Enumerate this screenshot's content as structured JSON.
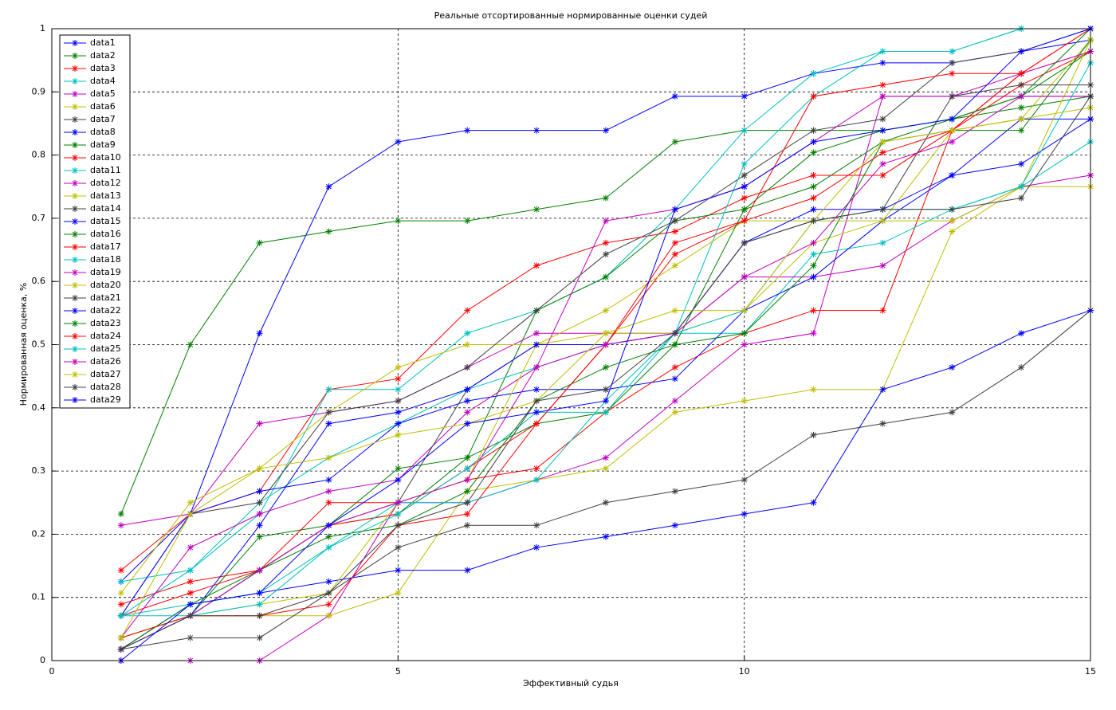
{
  "chart_data": {
    "type": "line",
    "title": "Реальные отсортированные нормированные оценки судей",
    "x_label": "Эффективный судья",
    "y_label": "Нормированная оценка, %",
    "x": [
      1,
      2,
      3,
      4,
      5,
      6,
      7,
      8,
      9,
      10,
      11,
      12,
      13,
      14,
      15
    ],
    "xlim": [
      0,
      15
    ],
    "xticks": [
      0,
      5,
      10,
      15
    ],
    "ylim": [
      0,
      1
    ],
    "yticks": [
      0,
      0.1,
      0.2,
      0.3,
      0.4,
      0.5,
      0.6,
      0.7,
      0.8,
      0.9,
      1
    ],
    "grid": true,
    "legend": "upper-left",
    "series": [
      {
        "name": "data1",
        "color": "#0000ff",
        "values": [
          0.125,
          0.232,
          0.518,
          0.75,
          0.821,
          0.839,
          0.839,
          0.839,
          0.893,
          0.893,
          0.929,
          0.946,
          0.946,
          0.964,
          0.982
        ]
      },
      {
        "name": "data2",
        "color": "#008000",
        "values": [
          0.232,
          0.5,
          0.661,
          0.679,
          0.696,
          0.696,
          0.714,
          0.732,
          0.821,
          0.839,
          0.839,
          0.839,
          0.857,
          0.875,
          0.893
        ]
      },
      {
        "name": "data3",
        "color": "#ff0000",
        "values": [
          0.143,
          0.232,
          0.268,
          0.429,
          0.446,
          0.554,
          0.625,
          0.661,
          0.679,
          0.732,
          0.768,
          0.768,
          0.839,
          0.929,
          1.0
        ]
      },
      {
        "name": "data4",
        "color": "#00bfbf",
        "values": [
          0.071,
          0.143,
          0.232,
          0.429,
          0.429,
          0.518,
          0.554,
          0.607,
          0.714,
          0.839,
          0.929,
          0.964,
          0.964,
          1.0,
          1.0
        ]
      },
      {
        "name": "data5",
        "color": "#bf00bf",
        "values": [
          0,
          0,
          0,
          0.071,
          0.25,
          0.25,
          0.286,
          0.321,
          0.411,
          0.5,
          0.518,
          0.893,
          0.893,
          0.893,
          0.893
        ]
      },
      {
        "name": "data6",
        "color": "#bfbf00",
        "values": [
          0.036,
          0.071,
          0.071,
          0.071,
          0.107,
          0.268,
          0.286,
          0.304,
          0.393,
          0.411,
          0.429,
          0.429,
          0.679,
          0.75,
          0.75
        ]
      },
      {
        "name": "data7",
        "color": "#404040",
        "values": [
          0.018,
          0.036,
          0.036,
          0.107,
          0.179,
          0.214,
          0.214,
          0.25,
          0.268,
          0.286,
          0.357,
          0.375,
          0.393,
          0.464,
          0.554
        ]
      },
      {
        "name": "data8",
        "color": "#0000ff",
        "values": [
          0.018,
          0.089,
          0.107,
          0.125,
          0.143,
          0.143,
          0.179,
          0.196,
          0.214,
          0.232,
          0.25,
          0.429,
          0.464,
          0.518,
          0.554
        ]
      },
      {
        "name": "data9",
        "color": "#008000",
        "values": [
          0.036,
          0.071,
          0.196,
          0.214,
          0.232,
          0.321,
          0.554,
          0.607,
          0.696,
          0.714,
          0.804,
          0.839,
          0.857,
          0.893,
          0.964
        ]
      },
      {
        "name": "data10",
        "color": "#ff0000",
        "values": [
          0.071,
          0.107,
          0.143,
          0.25,
          0.25,
          0.286,
          0.304,
          0.393,
          0.464,
          0.518,
          0.554,
          0.554,
          0.839,
          0.911,
          0.964
        ]
      },
      {
        "name": "data11",
        "color": "#00bfbf",
        "values": [
          0.125,
          0.143,
          0.25,
          0.321,
          0.375,
          0.429,
          0.464,
          0.5,
          0.518,
          0.518,
          0.643,
          0.661,
          0.714,
          0.75,
          0.821
        ]
      },
      {
        "name": "data12",
        "color": "#bf00bf",
        "values": [
          0.214,
          0.232,
          0.375,
          0.393,
          0.411,
          0.464,
          0.518,
          0.518,
          0.518,
          0.607,
          0.607,
          0.625,
          0.696,
          0.75,
          0.768
        ]
      },
      {
        "name": "data13",
        "color": "#bfbf00",
        "values": [
          0.107,
          0.25,
          0.304,
          0.393,
          0.464,
          0.5,
          0.5,
          0.518,
          0.518,
          0.554,
          0.661,
          0.696,
          0.839,
          0.857,
          0.982
        ]
      },
      {
        "name": "data14",
        "color": "#404040",
        "values": [
          0.071,
          0.232,
          0.25,
          0.393,
          0.411,
          0.464,
          0.554,
          0.643,
          0.696,
          0.768,
          0.839,
          0.857,
          0.946,
          0.964,
          1.0
        ]
      },
      {
        "name": "data15",
        "color": "#0000ff",
        "values": [
          0.071,
          0.232,
          0.268,
          0.286,
          0.375,
          0.411,
          0.429,
          0.429,
          0.446,
          0.554,
          0.607,
          0.696,
          0.768,
          0.857,
          0.857
        ]
      },
      {
        "name": "data16",
        "color": "#008000",
        "values": [
          0.018,
          0.089,
          0.143,
          0.214,
          0.304,
          0.321,
          0.375,
          0.393,
          0.5,
          0.518,
          0.625,
          0.821,
          0.839,
          0.839,
          0.982
        ]
      },
      {
        "name": "data17",
        "color": "#ff0000",
        "values": [
          0.089,
          0.125,
          0.143,
          0.214,
          0.232,
          0.304,
          0.375,
          0.5,
          0.643,
          0.696,
          0.732,
          0.804,
          0.839,
          0.929,
          0.964
        ]
      },
      {
        "name": "data18",
        "color": "#00bfbf",
        "values": [
          0.071,
          0.089,
          0.107,
          0.179,
          0.232,
          0.304,
          0.393,
          0.393,
          0.518,
          0.786,
          0.893,
          0.964,
          0.964,
          1.0,
          1.0
        ]
      },
      {
        "name": "data19",
        "color": "#bf00bf",
        "values": [
          0.036,
          0.179,
          0.232,
          0.268,
          0.286,
          0.393,
          0.464,
          0.696,
          0.714,
          0.75,
          0.821,
          0.893,
          0.893,
          0.929,
          0.964
        ]
      },
      {
        "name": "data20",
        "color": "#bfbf00",
        "values": [
          0.036,
          0.071,
          0.089,
          0.107,
          0.25,
          0.286,
          0.5,
          0.554,
          0.625,
          0.696,
          0.696,
          0.696,
          0.696,
          0.75,
          0.982
        ]
      },
      {
        "name": "data21",
        "color": "#404040",
        "values": [
          0.018,
          0.071,
          0.143,
          0.214,
          0.25,
          0.429,
          0.5,
          0.5,
          0.518,
          0.661,
          0.696,
          0.714,
          0.893,
          0.911,
          0.911
        ]
      },
      {
        "name": "data22",
        "color": "#0000ff",
        "values": [
          0.018,
          0.071,
          0.214,
          0.375,
          0.393,
          0.429,
          0.5,
          0.5,
          0.518,
          0.661,
          0.714,
          0.714,
          0.768,
          0.786,
          0.857
        ]
      },
      {
        "name": "data23",
        "color": "#008000",
        "values": [
          0.036,
          0.071,
          0.143,
          0.196,
          0.214,
          0.268,
          0.411,
          0.464,
          0.5,
          0.714,
          0.75,
          0.821,
          0.857,
          0.893,
          1.0
        ]
      },
      {
        "name": "data24",
        "color": "#ff0000",
        "values": [
          0.036,
          0.071,
          0.071,
          0.089,
          0.214,
          0.232,
          0.375,
          0.5,
          0.661,
          0.696,
          0.893,
          0.911,
          0.929,
          0.929,
          1.0
        ]
      },
      {
        "name": "data25",
        "color": "#00bfbf",
        "values": [
          0.071,
          0.071,
          0.089,
          0.179,
          0.25,
          0.25,
          0.286,
          0.411,
          0.518,
          0.554,
          0.696,
          0.714,
          0.714,
          0.75,
          0.946
        ]
      },
      {
        "name": "data26",
        "color": "#bf00bf",
        "values": [
          0.018,
          0.071,
          0.143,
          0.214,
          0.25,
          0.286,
          0.464,
          0.5,
          0.518,
          0.607,
          0.661,
          0.786,
          0.821,
          0.893,
          0.893
        ]
      },
      {
        "name": "data27",
        "color": "#bfbf00",
        "values": [
          0.036,
          0.232,
          0.304,
          0.321,
          0.357,
          0.375,
          0.411,
          0.518,
          0.554,
          0.554,
          0.696,
          0.821,
          0.839,
          0.857,
          0.875
        ]
      },
      {
        "name": "data28",
        "color": "#404040",
        "values": [
          0.018,
          0.071,
          0.071,
          0.107,
          0.214,
          0.25,
          0.411,
          0.429,
          0.518,
          0.661,
          0.696,
          0.714,
          0.714,
          0.732,
          0.893
        ]
      },
      {
        "name": "data29",
        "color": "#0000ff",
        "values": [
          0,
          0.089,
          0.107,
          0.214,
          0.286,
          0.375,
          0.393,
          0.411,
          0.714,
          0.75,
          0.821,
          0.839,
          0.857,
          0.964,
          1.0
        ]
      }
    ]
  }
}
